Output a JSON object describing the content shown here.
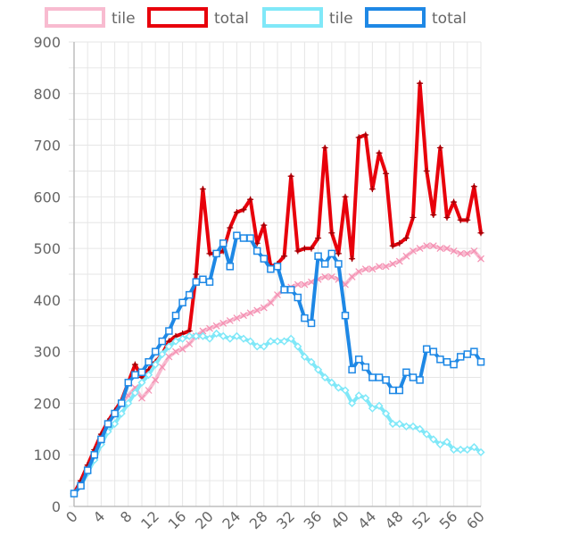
{
  "chart_data": {
    "type": "line",
    "title": "",
    "xlabel": "",
    "ylabel": "",
    "xlim": [
      0,
      60
    ],
    "ylim": [
      0,
      900
    ],
    "x_ticks": [
      0,
      4,
      8,
      12,
      16,
      20,
      24,
      28,
      32,
      36,
      40,
      44,
      48,
      52,
      56,
      60
    ],
    "y_ticks": [
      0,
      100,
      200,
      300,
      400,
      500,
      600,
      700,
      800,
      900
    ],
    "grid": true,
    "legend_position": "top",
    "x": [
      0,
      1,
      2,
      3,
      4,
      5,
      6,
      7,
      8,
      9,
      10,
      11,
      12,
      13,
      14,
      15,
      16,
      17,
      18,
      19,
      20,
      21,
      22,
      23,
      24,
      25,
      26,
      27,
      28,
      29,
      30,
      31,
      32,
      33,
      34,
      35,
      36,
      37,
      38,
      39,
      40,
      41,
      42,
      43,
      44,
      45,
      46,
      47,
      48,
      49,
      50,
      51,
      52,
      53,
      54,
      55,
      56,
      57,
      58,
      59,
      60
    ],
    "series": [
      {
        "name": "tile",
        "color": "#f8bbd0",
        "marker": "x",
        "values": [
          25,
          45,
          70,
          95,
          125,
          160,
          180,
          200,
          215,
          230,
          210,
          225,
          245,
          270,
          290,
          300,
          305,
          315,
          330,
          340,
          345,
          350,
          355,
          360,
          365,
          370,
          375,
          380,
          385,
          395,
          410,
          420,
          425,
          430,
          430,
          435,
          440,
          445,
          445,
          440,
          430,
          445,
          455,
          460,
          460,
          465,
          465,
          470,
          475,
          485,
          495,
          500,
          505,
          505,
          500,
          500,
          495,
          490,
          490,
          495,
          480
        ]
      },
      {
        "name": "total",
        "color": "#e8000b",
        "marker": "plus",
        "values": [
          25,
          50,
          80,
          110,
          140,
          165,
          185,
          205,
          240,
          275,
          250,
          265,
          280,
          295,
          320,
          330,
          335,
          340,
          450,
          615,
          490,
          490,
          495,
          540,
          570,
          575,
          595,
          510,
          545,
          465,
          470,
          485,
          640,
          495,
          500,
          500,
          520,
          695,
          530,
          490,
          600,
          480,
          715,
          720,
          615,
          685,
          645,
          505,
          510,
          520,
          560,
          820,
          650,
          565,
          695,
          560,
          590,
          555,
          555,
          620,
          530
        ]
      },
      {
        "name": "tile",
        "color": "#80e8f8",
        "marker": "diamond",
        "values": [
          25,
          40,
          65,
          90,
          120,
          145,
          160,
          180,
          200,
          220,
          240,
          255,
          275,
          295,
          310,
          320,
          325,
          330,
          330,
          330,
          325,
          335,
          330,
          325,
          330,
          325,
          320,
          310,
          310,
          320,
          320,
          320,
          325,
          310,
          290,
          280,
          265,
          250,
          240,
          230,
          225,
          200,
          215,
          210,
          190,
          195,
          180,
          160,
          160,
          155,
          155,
          150,
          140,
          130,
          120,
          125,
          110,
          110,
          110,
          115,
          105
        ]
      },
      {
        "name": "total",
        "color": "#1e88e5",
        "marker": "square",
        "values": [
          25,
          40,
          70,
          100,
          130,
          160,
          180,
          200,
          240,
          255,
          260,
          280,
          300,
          320,
          340,
          370,
          395,
          410,
          435,
          440,
          435,
          490,
          510,
          465,
          525,
          520,
          520,
          495,
          480,
          460,
          465,
          420,
          420,
          405,
          365,
          355,
          485,
          470,
          490,
          470,
          370,
          265,
          285,
          270,
          250,
          250,
          245,
          225,
          225,
          260,
          250,
          245,
          305,
          300,
          285,
          280,
          275,
          290,
          295,
          300,
          280
        ]
      }
    ]
  }
}
